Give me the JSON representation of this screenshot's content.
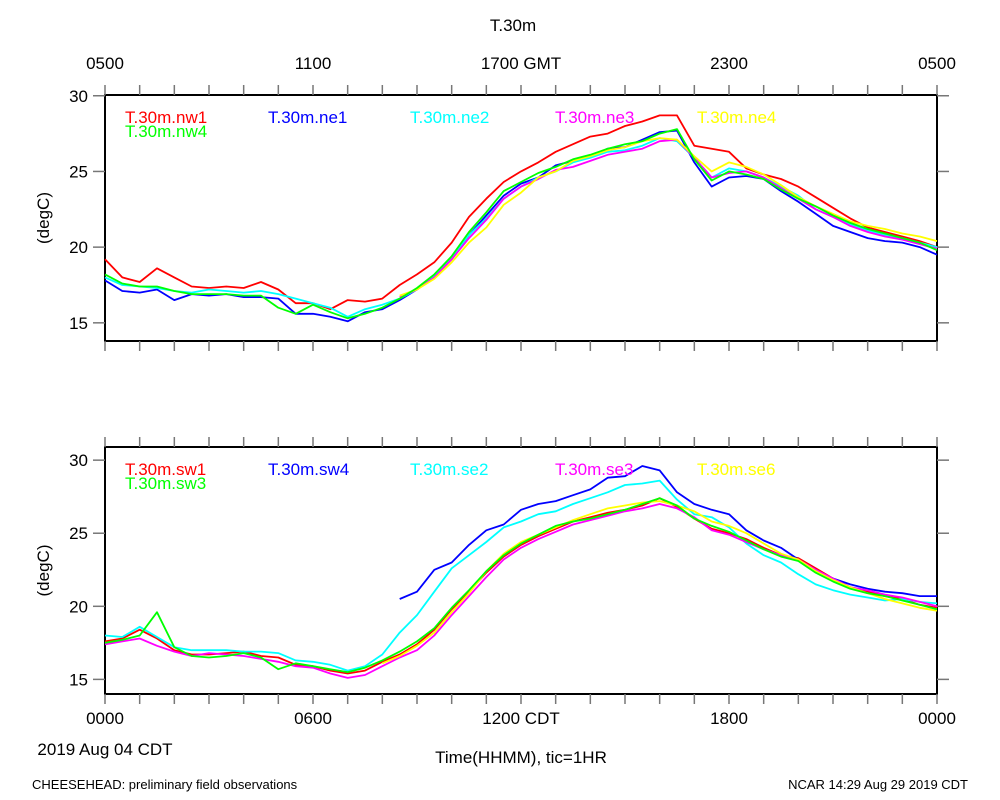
{
  "title": "T.30m",
  "top_axis_labels": [
    "0500",
    "1100",
    "1700 GMT",
    "2300",
    "0500"
  ],
  "bottom_axis_labels": [
    "0000",
    "0600",
    "1200 CDT",
    "1800",
    "0000"
  ],
  "date_label": "2019 Aug 04 CDT",
  "xlabel": "Time(HHMM), tic=1HR",
  "footer_left": "CHEESEHEAD: preliminary field observations",
  "footer_right": "NCAR 14:29 Aug 29 2019 CDT",
  "chart_data": [
    {
      "type": "line",
      "ylabel": "(degC)",
      "ylim": [
        13.8,
        30.05
      ],
      "yticks": [
        "15",
        "20",
        "25",
        "30"
      ],
      "xlim": [
        0,
        24
      ],
      "x_step_hours": 0.5,
      "series": [
        {
          "name": "T.30m.nw1",
          "color": "#ff0000",
          "values": [
            19.2,
            18.0,
            17.7,
            18.6,
            18.0,
            17.4,
            17.3,
            17.4,
            17.3,
            17.7,
            17.2,
            16.3,
            16.3,
            15.9,
            16.5,
            16.4,
            16.6,
            17.5,
            18.2,
            19.0,
            20.3,
            22.0,
            23.2,
            24.3,
            25.0,
            25.6,
            26.3,
            26.8,
            27.3,
            27.5,
            28.0,
            28.3,
            28.7,
            28.7,
            26.7,
            26.5,
            26.3,
            25.2,
            24.8,
            24.5,
            24.0,
            23.3,
            22.6,
            21.9,
            21.3,
            21.0,
            20.7,
            20.4,
            20.0
          ]
        },
        {
          "name": "T.30m.ne1",
          "color": "#0000ff",
          "values": [
            17.8,
            17.1,
            17.0,
            17.2,
            16.5,
            16.9,
            16.8,
            16.9,
            16.7,
            16.7,
            16.6,
            15.6,
            15.6,
            15.4,
            15.1,
            15.7,
            15.9,
            16.5,
            17.2,
            18.1,
            19.2,
            20.8,
            22.1,
            23.4,
            24.2,
            24.6,
            25.4,
            25.7,
            26.0,
            26.5,
            26.6,
            27.1,
            27.6,
            27.7,
            25.6,
            24.0,
            24.6,
            24.7,
            24.5,
            23.7,
            23.0,
            22.2,
            21.4,
            21.0,
            20.6,
            20.4,
            20.3,
            20.0,
            19.5
          ]
        },
        {
          "name": "T.30m.ne2",
          "color": "#00ffff",
          "values": [
            18.0,
            17.5,
            17.4,
            17.3,
            17.1,
            17.0,
            17.2,
            17.1,
            17.0,
            17.1,
            16.9,
            16.6,
            16.3,
            16.0,
            15.4,
            15.9,
            16.2,
            16.6,
            17.2,
            18.1,
            19.3,
            20.8,
            21.9,
            23.2,
            24.0,
            24.6,
            25.0,
            25.6,
            25.9,
            26.3,
            26.4,
            26.7,
            27.2,
            27.0,
            25.9,
            24.6,
            25.2,
            25.0,
            24.6,
            24.0,
            23.4,
            22.5,
            22.0,
            21.5,
            21.1,
            20.8,
            20.6,
            20.3,
            20.0
          ]
        },
        {
          "name": "T.30m.ne3",
          "color": "#ff00ff",
          "values": [
            null,
            null,
            null,
            null,
            null,
            null,
            null,
            null,
            null,
            null,
            null,
            null,
            null,
            null,
            null,
            null,
            null,
            16.7,
            17.2,
            18.0,
            19.2,
            20.6,
            21.8,
            23.2,
            24.0,
            24.5,
            25.1,
            25.3,
            25.7,
            26.1,
            26.3,
            26.5,
            27.0,
            27.1,
            25.9,
            24.6,
            24.9,
            25.0,
            24.6,
            23.9,
            23.2,
            22.5,
            22.0,
            21.4,
            21.0,
            20.7,
            20.5,
            20.2,
            19.9
          ]
        },
        {
          "name": "T.30m.ne4",
          "color": "#ffff00",
          "values": [
            null,
            null,
            null,
            null,
            null,
            null,
            null,
            null,
            null,
            null,
            null,
            null,
            null,
            null,
            null,
            null,
            null,
            16.8,
            17.2,
            17.9,
            19.0,
            20.3,
            21.3,
            22.8,
            23.6,
            24.6,
            25.0,
            25.7,
            26.0,
            26.4,
            26.6,
            27.0,
            27.2,
            27.1,
            26.0,
            25.0,
            25.6,
            25.3,
            24.8,
            24.1,
            23.3,
            22.7,
            22.2,
            21.7,
            21.4,
            21.2,
            20.9,
            20.7,
            20.4
          ]
        },
        {
          "name": "T.30m.nw4",
          "color": "#00ff00",
          "values": [
            18.2,
            17.6,
            17.4,
            17.4,
            17.1,
            16.9,
            16.9,
            16.9,
            16.8,
            16.8,
            16.0,
            15.6,
            16.2,
            15.7,
            15.3,
            15.6,
            16.0,
            16.6,
            17.3,
            18.2,
            19.4,
            21.0,
            22.3,
            23.7,
            24.3,
            24.9,
            25.3,
            25.8,
            26.1,
            26.5,
            26.8,
            27.0,
            27.5,
            27.8,
            25.8,
            24.4,
            25.0,
            24.8,
            24.5,
            23.8,
            23.2,
            22.7,
            22.1,
            21.6,
            21.2,
            20.9,
            20.6,
            20.3,
            19.8
          ]
        }
      ]
    },
    {
      "type": "line",
      "ylabel": "(degC)",
      "ylim": [
        14.0,
        30.9
      ],
      "yticks": [
        "15",
        "20",
        "25",
        "30"
      ],
      "xlim": [
        0,
        24
      ],
      "x_step_hours": 0.5,
      "series": [
        {
          "name": "T.30m.sw1",
          "color": "#ff0000",
          "values": [
            17.6,
            17.8,
            18.4,
            17.8,
            17.0,
            16.7,
            16.7,
            16.8,
            16.9,
            16.6,
            16.5,
            16.0,
            15.9,
            15.6,
            15.4,
            15.6,
            16.2,
            16.7,
            17.4,
            18.4,
            19.8,
            21.0,
            22.3,
            23.4,
            24.2,
            24.8,
            25.3,
            25.8,
            26.1,
            26.4,
            26.6,
            26.9,
            27.4,
            26.8,
            26.0,
            25.3,
            25.0,
            24.6,
            24.0,
            23.5,
            23.3,
            22.6,
            21.9,
            21.3,
            21.0,
            20.7,
            20.5,
            20.1,
            19.9
          ]
        },
        {
          "name": "T.30m.sw4",
          "color": "#0000ff",
          "values": [
            null,
            null,
            null,
            null,
            null,
            null,
            null,
            null,
            null,
            null,
            null,
            null,
            null,
            null,
            null,
            null,
            null,
            20.5,
            21.0,
            22.5,
            23.0,
            24.2,
            25.2,
            25.6,
            26.6,
            27.0,
            27.2,
            27.6,
            28.0,
            28.8,
            28.9,
            29.6,
            29.3,
            27.8,
            27.0,
            26.6,
            26.3,
            25.2,
            24.5,
            24.0,
            23.2,
            22.4,
            21.9,
            21.5,
            21.2,
            21.0,
            20.9,
            20.7,
            20.7
          ]
        },
        {
          "name": "T.30m.se2",
          "color": "#00ffff",
          "values": [
            18.0,
            17.9,
            18.6,
            17.9,
            17.2,
            17.0,
            17.0,
            17.0,
            16.9,
            16.9,
            16.8,
            16.3,
            16.2,
            16.0,
            15.6,
            15.9,
            16.7,
            18.2,
            19.4,
            21.0,
            22.6,
            23.5,
            24.4,
            25.4,
            25.8,
            26.3,
            26.5,
            27.0,
            27.4,
            27.8,
            28.3,
            28.4,
            28.6,
            27.3,
            26.3,
            26.1,
            25.4,
            24.3,
            23.5,
            23.0,
            22.2,
            21.5,
            21.1,
            20.8,
            20.6,
            20.4,
            20.5,
            20.3,
            20.2
          ]
        },
        {
          "name": "T.30m.se3",
          "color": "#ff00ff",
          "values": [
            17.4,
            17.6,
            17.8,
            17.3,
            16.9,
            16.6,
            16.8,
            16.7,
            16.6,
            16.4,
            16.2,
            15.9,
            15.8,
            15.4,
            15.1,
            15.3,
            15.9,
            16.5,
            17.0,
            18.0,
            19.4,
            20.7,
            22.0,
            23.2,
            24.0,
            24.6,
            25.1,
            25.6,
            25.9,
            26.2,
            26.5,
            26.7,
            27.0,
            26.7,
            26.1,
            25.2,
            24.9,
            24.4,
            23.9,
            23.5,
            23.2,
            22.5,
            21.9,
            21.3,
            21.1,
            20.8,
            20.6,
            20.3,
            20.0
          ]
        },
        {
          "name": "T.30m.se6",
          "color": "#ffff00",
          "values": [
            null,
            null,
            null,
            null,
            null,
            null,
            null,
            null,
            null,
            null,
            null,
            null,
            null,
            null,
            null,
            null,
            16.1,
            16.6,
            17.3,
            18.2,
            19.6,
            20.9,
            22.4,
            23.6,
            24.4,
            24.9,
            25.4,
            25.9,
            26.3,
            26.7,
            26.9,
            27.1,
            27.2,
            26.9,
            26.5,
            25.8,
            25.5,
            25.0,
            24.3,
            23.6,
            23.2,
            22.4,
            21.8,
            21.3,
            20.9,
            20.5,
            20.2,
            19.9,
            19.7
          ]
        },
        {
          "name": "T.30m.sw3",
          "color": "#00ff00",
          "values": [
            17.5,
            17.7,
            18.0,
            19.6,
            17.2,
            16.6,
            16.5,
            16.6,
            16.8,
            16.5,
            15.7,
            16.1,
            15.9,
            15.7,
            15.5,
            15.8,
            16.3,
            16.9,
            17.6,
            18.5,
            19.9,
            21.1,
            22.4,
            23.5,
            24.3,
            24.9,
            25.5,
            25.8,
            26.0,
            26.3,
            26.6,
            27.0,
            27.4,
            26.9,
            26.0,
            25.5,
            25.1,
            24.5,
            23.9,
            23.4,
            23.1,
            22.3,
            21.7,
            21.2,
            20.9,
            20.7,
            20.4,
            20.1,
            19.8
          ]
        }
      ]
    }
  ]
}
